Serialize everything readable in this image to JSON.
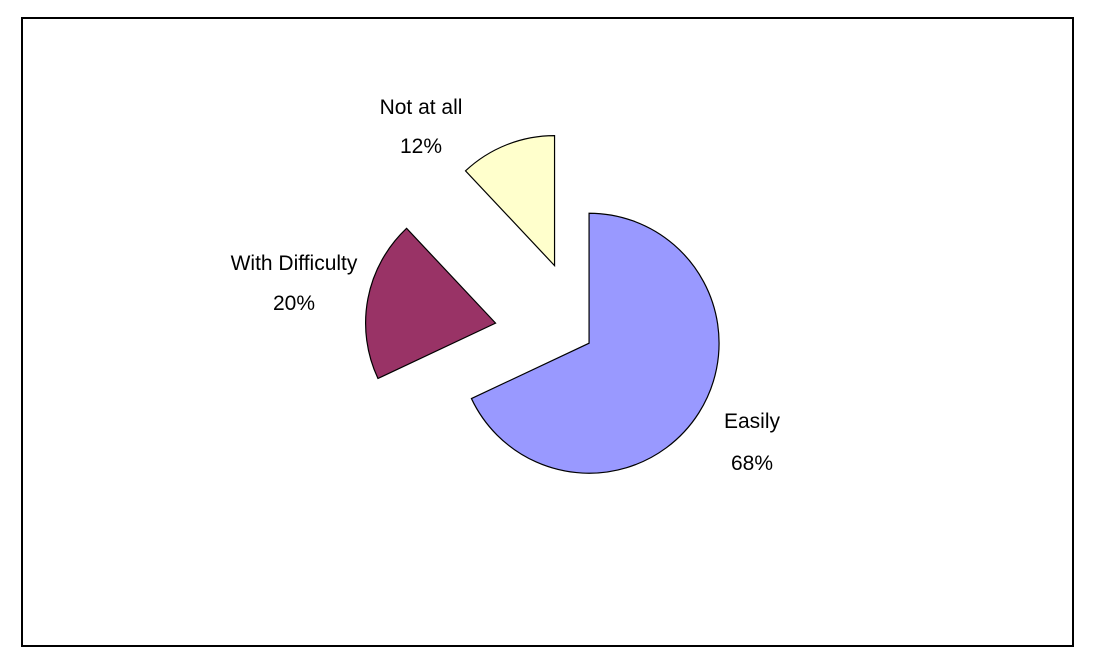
{
  "chart_data": {
    "type": "pie",
    "title": "",
    "exploded": true,
    "legend": "none",
    "slices": [
      {
        "name": "Easily",
        "value": 68,
        "label": "68%",
        "color": "#9999FF"
      },
      {
        "name": "With Difficulty",
        "value": 20,
        "label": "20%",
        "color": "#993366"
      },
      {
        "name": "Not at all",
        "value": 12,
        "label": "12%",
        "color": "#FFFFCC"
      }
    ]
  }
}
